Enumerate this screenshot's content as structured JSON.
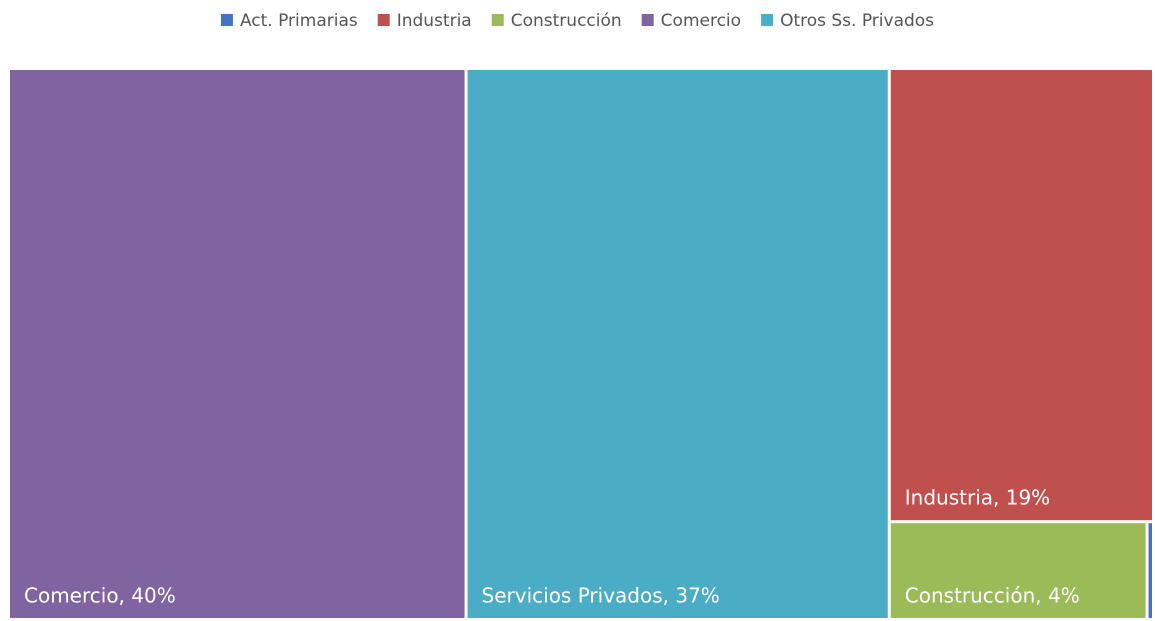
{
  "chart_data": {
    "type": "treemap",
    "series": [
      {
        "name": "Act. Primarias",
        "color": "#4472c4",
        "values": [
          0.1
        ],
        "value_labels": [
          null
        ]
      },
      {
        "name": "Industria",
        "color": "#c0504d",
        "values": [
          19
        ],
        "value_labels": [
          "Industria, 19%"
        ]
      },
      {
        "name": "Construcción",
        "color": "#9bbb59",
        "values": [
          4
        ],
        "value_labels": [
          "Construcción, 4%"
        ]
      },
      {
        "name": "Comercio",
        "color": "#8064a2",
        "values": [
          40
        ],
        "value_labels": [
          "Comercio, 40%"
        ]
      },
      {
        "name": "Otros Ss. Privados",
        "color": "#4bacc6",
        "values": [
          37
        ],
        "value_labels": [
          "Servicios Privados, 37%"
        ]
      }
    ],
    "legend": "top"
  }
}
